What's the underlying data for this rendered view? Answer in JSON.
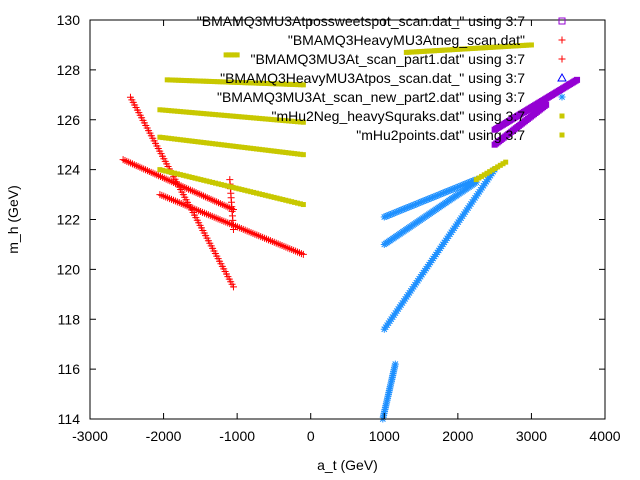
{
  "chart_data": {
    "type": "scatter",
    "xlabel": "a_t (GeV)",
    "ylabel": "m_h (GeV)",
    "xlim": [
      -3000,
      4000
    ],
    "ylim": [
      114,
      130
    ],
    "xticks": [
      -3000,
      -2000,
      -1000,
      0,
      1000,
      2000,
      3000,
      4000
    ],
    "yticks": [
      114,
      116,
      118,
      120,
      122,
      124,
      126,
      128,
      130
    ],
    "grid": false,
    "legend_position": "top-right",
    "series": [
      {
        "name": "\"BMAMQ3MU3Atpossweetspot_scan.dat_\" using 3:7",
        "marker": "square",
        "color": "#9400d3",
        "segments": [
          {
            "x0": 2500,
            "y0": 125.6,
            "x1": 3620,
            "y1": 127.6,
            "n": 60
          },
          {
            "x0": 2500,
            "y0": 125.0,
            "x1": 3200,
            "y1": 126.6,
            "n": 35
          }
        ]
      },
      {
        "name": "\"BMAMQ3HeavyMU3Atneg_scan.dat\"",
        "marker": "plus",
        "color": "#ff0000",
        "segments": [
          {
            "x0": -2450,
            "y0": 126.9,
            "x1": -1050,
            "y1": 119.3,
            "n": 75
          }
        ]
      },
      {
        "name": "\"BMAMQ3MU3At_scan_part1.dat\" using 3:7",
        "marker": "plus",
        "color": "#ff0000",
        "segments": [
          {
            "x0": -2550,
            "y0": 124.4,
            "x1": -1050,
            "y1": 122.4,
            "n": 60
          },
          {
            "x0": -2050,
            "y0": 123.0,
            "x1": -100,
            "y1": 120.6,
            "n": 75
          },
          {
            "x0": -1100,
            "y0": 123.6,
            "x1": -1050,
            "y1": 121.6,
            "n": 12
          }
        ]
      },
      {
        "name": "\"BMAMQ3HeavyMU3Atpos_scan.dat_\" using 3:7",
        "marker": "triangle",
        "color": "#0000ff",
        "segments": []
      },
      {
        "name": "\"BMAMQ3MU3At_scan_new_part2.dat\" using 3:7",
        "marker": "star",
        "color": "#1e90ff",
        "segments": [
          {
            "x0": 1000,
            "y0": 122.1,
            "x1": 2250,
            "y1": 123.6,
            "n": 60
          },
          {
            "x0": 1000,
            "y0": 121.0,
            "x1": 2250,
            "y1": 123.5,
            "n": 65
          },
          {
            "x0": 1000,
            "y0": 117.6,
            "x1": 2500,
            "y1": 124.0,
            "n": 80
          },
          {
            "x0": 980,
            "y0": 114.0,
            "x1": 1150,
            "y1": 116.2,
            "n": 30
          }
        ]
      },
      {
        "name": "\"mHu2Neg_heavySquraks.dat\" using 3:7",
        "marker": "dot",
        "color": "#c8c800",
        "segments": [
          {
            "x0": -1950,
            "y0": 127.6,
            "x1": -100,
            "y1": 127.4,
            "n": 50
          },
          {
            "x0": -2050,
            "y0": 126.4,
            "x1": -100,
            "y1": 125.9,
            "n": 50
          },
          {
            "x0": -2050,
            "y0": 125.3,
            "x1": -100,
            "y1": 124.6,
            "n": 50
          },
          {
            "x0": -2050,
            "y0": 124.0,
            "x1": -100,
            "y1": 122.6,
            "n": 50
          }
        ]
      },
      {
        "name": "\"mHu2points.dat\" using 3:7",
        "marker": "dot",
        "color": "#c8c800",
        "segments": [
          {
            "x0": -1150,
            "y0": 128.6,
            "x1": -1000,
            "y1": 128.6,
            "n": 5
          },
          {
            "x0": 1300,
            "y0": 128.7,
            "x1": 3000,
            "y1": 129.0,
            "n": 50
          },
          {
            "x0": 2250,
            "y0": 123.6,
            "x1": 2650,
            "y1": 124.3,
            "n": 12
          }
        ]
      }
    ]
  }
}
